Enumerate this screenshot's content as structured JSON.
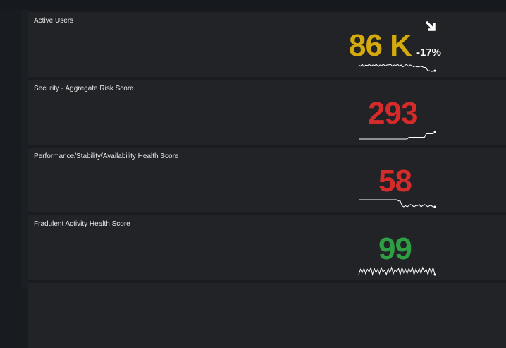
{
  "colors": {
    "yellow": "#d4aa0c",
    "red": "#d52b2b",
    "green": "#2e9e43"
  },
  "panels": [
    {
      "title": "Active Users",
      "value": "86 K",
      "color": "yellow",
      "delta": "-17%",
      "trend_icon": "arrow-down-right-icon",
      "sparkline": [
        6,
        4,
        7,
        3,
        6,
        5,
        7,
        4,
        6,
        5,
        7,
        3,
        6,
        5,
        7,
        4,
        6,
        6,
        7,
        4,
        6,
        5,
        7,
        4,
        6,
        3,
        5,
        7,
        4,
        6,
        5,
        3,
        4,
        3,
        3,
        4,
        3,
        2,
        2,
        -3,
        -3,
        -4,
        -4,
        -3
      ]
    },
    {
      "title": "Security - Aggregate Risk Score",
      "value": "293",
      "color": "red",
      "sparkline": [
        0,
        0,
        0,
        0,
        0,
        0,
        0,
        0,
        0,
        0,
        0,
        0,
        0,
        0,
        0,
        0,
        0,
        0,
        0,
        0,
        0,
        0,
        0,
        0,
        0,
        0,
        0,
        0,
        0,
        1,
        1,
        1,
        1,
        1,
        1,
        1,
        1,
        1,
        1,
        3,
        3,
        3,
        3,
        3,
        4
      ]
    },
    {
      "title": "Performance/Stability/Availability Health Score",
      "value": "58",
      "color": "red",
      "sparkline": [
        5,
        5,
        5,
        5,
        5,
        5,
        5,
        5,
        5,
        5,
        5,
        5,
        5,
        5,
        5,
        5,
        5,
        5,
        5,
        5,
        5,
        5,
        5,
        4,
        4,
        0,
        -1,
        0,
        -1,
        0,
        1,
        0,
        -1,
        0,
        0,
        1,
        -1,
        0,
        1,
        0,
        -1,
        0,
        0,
        -1,
        -1
      ]
    },
    {
      "title": "Fradulent Activity Health Score",
      "value": "99",
      "color": "green",
      "sparkline": [
        0,
        6,
        2,
        7,
        1,
        6,
        3,
        8,
        0,
        7,
        2,
        6,
        1,
        8,
        3,
        5,
        0,
        7,
        2,
        8,
        1,
        6,
        3,
        7,
        0,
        8,
        2,
        6,
        1,
        7,
        3,
        8,
        0,
        6,
        2,
        7,
        1,
        8,
        3,
        6,
        0,
        7,
        2,
        8,
        0
      ]
    }
  ]
}
